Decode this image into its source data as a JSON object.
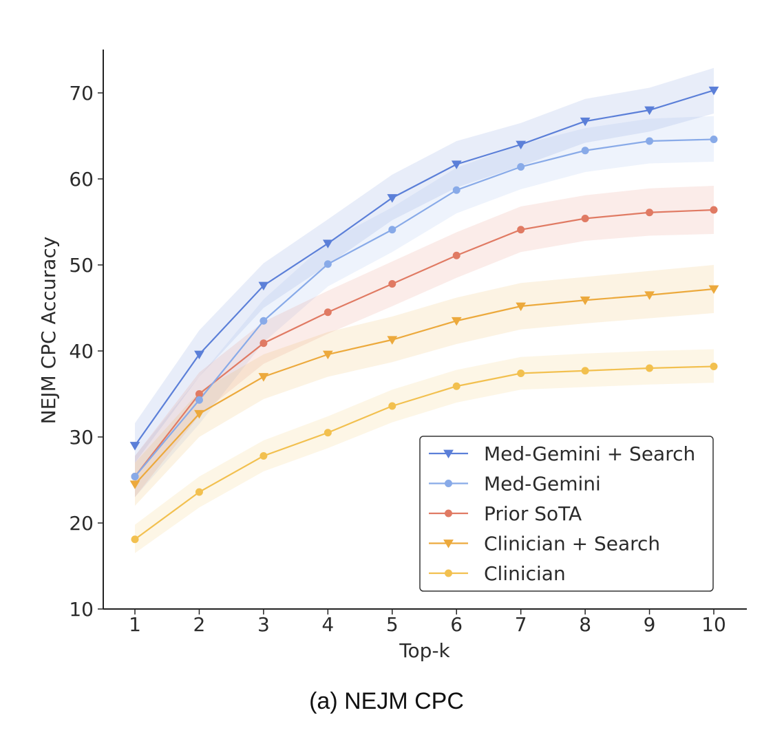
{
  "caption": "(a) NEJM CPC",
  "chart_data": {
    "type": "line",
    "xlabel": "Top-k",
    "ylabel": "NEJM CPC Accuracy",
    "x": [
      1,
      2,
      3,
      4,
      5,
      6,
      7,
      8,
      9,
      10
    ],
    "xlim": [
      0.5,
      10.5
    ],
    "ylim": [
      10,
      75
    ],
    "xticks": [
      1,
      2,
      3,
      4,
      5,
      6,
      7,
      8,
      9,
      10
    ],
    "yticks": [
      10,
      20,
      30,
      40,
      50,
      60,
      70
    ],
    "grid": false,
    "legend_position": "lower-right",
    "series": [
      {
        "name": "Med-Gemini + Search",
        "color": "#5b7fd8",
        "marker": "triangle-down",
        "values": [
          29.0,
          39.6,
          47.6,
          52.5,
          57.8,
          61.7,
          64.0,
          66.7,
          68.0,
          70.3
        ],
        "lower": [
          27.0,
          37.0,
          45.0,
          50.0,
          55.2,
          59.0,
          61.5,
          64.2,
          65.5,
          67.6
        ],
        "upper": [
          31.6,
          42.4,
          50.2,
          55.3,
          60.5,
          64.4,
          66.5,
          69.3,
          70.6,
          72.9
        ]
      },
      {
        "name": "Med-Gemini",
        "color": "#88aae8",
        "marker": "circle",
        "values": [
          25.4,
          34.3,
          43.5,
          50.1,
          54.1,
          58.7,
          61.4,
          63.3,
          64.4,
          64.6
        ],
        "lower": [
          23.0,
          31.5,
          41.0,
          47.5,
          51.5,
          56.0,
          58.8,
          60.8,
          61.8,
          62.0
        ],
        "upper": [
          27.8,
          37.0,
          46.0,
          52.7,
          56.7,
          61.3,
          64.0,
          65.9,
          67.0,
          67.3
        ]
      },
      {
        "name": "Prior SoTA",
        "color": "#e07a63",
        "marker": "circle",
        "values": [
          25.4,
          35.0,
          40.9,
          44.5,
          47.8,
          51.1,
          54.1,
          55.4,
          56.1,
          56.4
        ],
        "lower": [
          23.0,
          32.5,
          38.5,
          42.0,
          45.2,
          48.5,
          51.5,
          52.8,
          53.4,
          53.6
        ],
        "upper": [
          27.8,
          37.5,
          43.4,
          47.0,
          50.4,
          53.8,
          56.8,
          58.1,
          58.9,
          59.2
        ]
      },
      {
        "name": "Clinician + Search",
        "color": "#eca93c",
        "marker": "triangle-down",
        "values": [
          24.5,
          32.7,
          37.0,
          39.6,
          41.3,
          43.5,
          45.2,
          45.9,
          46.5,
          47.2
        ],
        "lower": [
          22.0,
          30.0,
          34.4,
          37.0,
          38.7,
          40.8,
          42.5,
          43.2,
          43.8,
          44.4
        ],
        "upper": [
          27.0,
          35.3,
          39.6,
          42.2,
          44.0,
          46.2,
          47.9,
          48.6,
          49.3,
          50.0
        ]
      },
      {
        "name": "Clinician",
        "color": "#f2c04f",
        "marker": "circle",
        "values": [
          18.1,
          23.6,
          27.8,
          30.5,
          33.6,
          35.9,
          37.4,
          37.7,
          38.0,
          38.2
        ],
        "lower": [
          16.5,
          21.8,
          26.0,
          28.7,
          31.7,
          34.0,
          35.5,
          35.8,
          36.1,
          36.3
        ],
        "upper": [
          19.8,
          25.4,
          29.6,
          32.4,
          35.5,
          37.8,
          39.3,
          39.7,
          40.0,
          40.2
        ]
      }
    ]
  }
}
